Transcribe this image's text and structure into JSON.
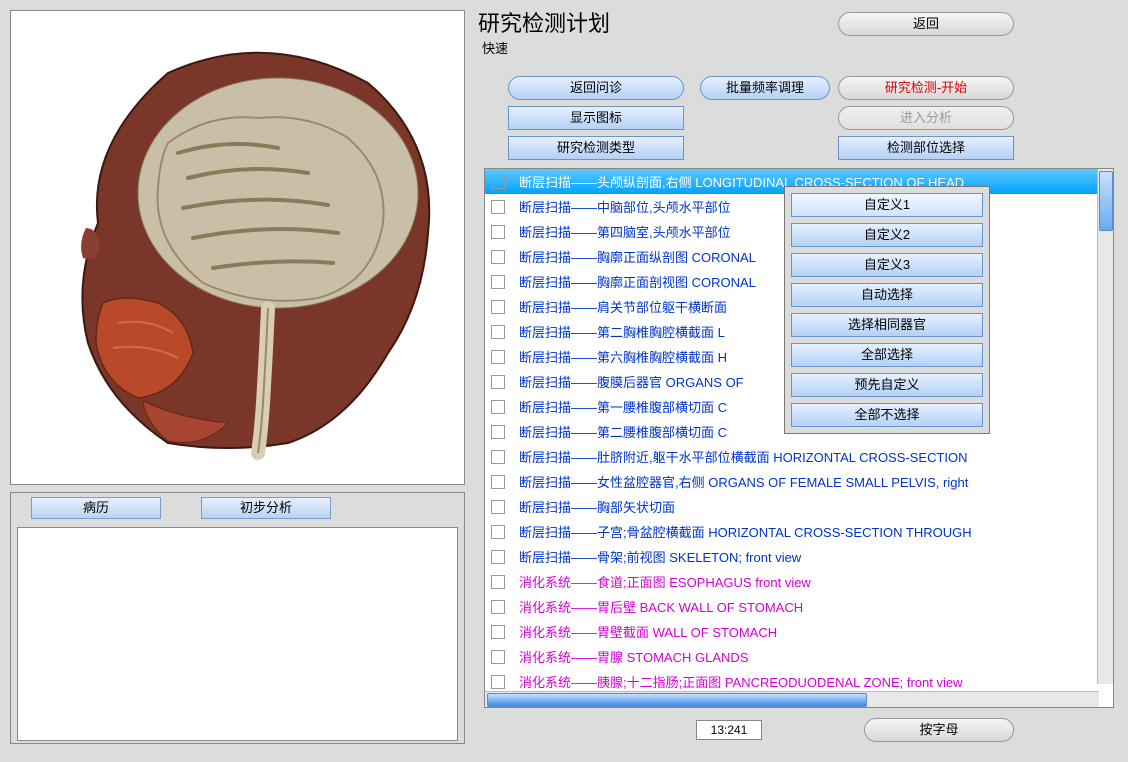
{
  "title": {
    "main": "研究检测计划",
    "sub": "快速"
  },
  "top_buttons": {
    "back": "返回",
    "return_inquiry": "返回问诊",
    "batch_freq": "批量频率调理",
    "research_start": "研究检测-开始",
    "show_icon": "显示图标",
    "analyze": "进入分析",
    "research_type": "研究检测类型",
    "region_select": "检测部位选择"
  },
  "tabs": {
    "history": "病历",
    "analysis": "初步分析"
  },
  "menu": {
    "items": [
      "自定义1",
      "自定义2",
      "自定义3",
      "自动选择",
      "选择相同器官",
      "全部选择",
      "预先自定义",
      "全部不选择"
    ]
  },
  "list": {
    "rows": [
      {
        "text": "断层扫描——头颅纵剖面,右侧 LONGITUDINAL CROSS-SECTION OF HEAD",
        "color": "blue",
        "selected": true
      },
      {
        "text": "断层扫描——中脑部位,头颅水平部位",
        "color": "blue"
      },
      {
        "text": "断层扫描——第四脑室,头颅水平部位",
        "color": "blue"
      },
      {
        "text": "断层扫描——胸廓正面纵剖图 CORONAL",
        "color": "blue"
      },
      {
        "text": "断层扫描——胸廓正面剖视图 CORONAL",
        "color": "blue"
      },
      {
        "text": "断层扫描——肩关节部位躯干横断面",
        "color": "blue"
      },
      {
        "text": "断层扫描——第二胸椎胸腔横截面 L",
        "color": "blue"
      },
      {
        "text": "断层扫描——第六胸椎胸腔横截面 H",
        "color": "blue"
      },
      {
        "text": "断层扫描——腹膜后器官 ORGANS OF",
        "color": "blue"
      },
      {
        "text": "断层扫描——第一腰椎腹部横切面 C",
        "color": "blue"
      },
      {
        "text": "断层扫描——第二腰椎腹部横切面 C",
        "color": "blue"
      },
      {
        "text": "断层扫描——肚脐附近,躯干水平部位横截面 HORIZONTAL CROSS-SECTION",
        "color": "blue"
      },
      {
        "text": "断层扫描——女性盆腔器官,右侧 ORGANS OF FEMALE SMALL PELVIS, right",
        "color": "blue"
      },
      {
        "text": "断层扫描——胸部矢状切面",
        "color": "blue"
      },
      {
        "text": "断层扫描——子宫;骨盆腔横截面 HORIZONTAL CROSS-SECTION THROUGH",
        "color": "blue"
      },
      {
        "text": "断层扫描——骨架;前视图 SKELETON;  front  view",
        "color": "blue"
      },
      {
        "text": "消化系统——食道;正面图 ESOPHAGUS    front   view",
        "color": "magenta"
      },
      {
        "text": "消化系统——胃后壁 BACK WALL OF STOMACH",
        "color": "magenta"
      },
      {
        "text": "消化系统——胃壁截面 WALL OF STOMACH",
        "color": "magenta"
      },
      {
        "text": "消化系统——胃腺 STOMACH  GLANDS",
        "color": "magenta"
      },
      {
        "text": "消化系统——胰腺;十二指肠;正面图 PANCREODUODENAL  ZONE;  front  view",
        "color": "magenta"
      }
    ]
  },
  "bottom": {
    "counter": "13:241",
    "sort": "按字母"
  }
}
